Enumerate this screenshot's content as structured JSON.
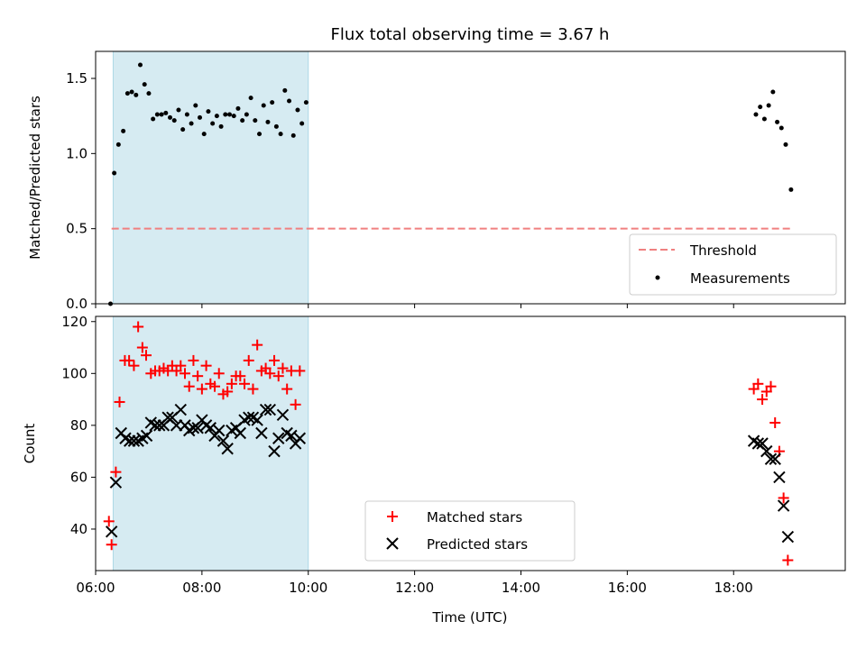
{
  "title": "Flux total observing time = 3.67 h",
  "colors": {
    "highlight": "#add8e6",
    "threshold": "#f08080",
    "measurement": "#000000",
    "matched": "#ff0000",
    "predicted": "#000000"
  },
  "chart_data": [
    {
      "type": "scatter",
      "panel": "top",
      "ylabel": "Matched/Predicted stars",
      "xlabel": "",
      "xlim": [
        6.0,
        20.1
      ],
      "ylim": [
        0,
        1.68
      ],
      "yticks": [
        0.0,
        0.5,
        1.0,
        1.5
      ],
      "ytick_labels": [
        "0.0",
        "0.5",
        "1.0",
        "1.5"
      ],
      "highlight_span": [
        6.33,
        10.0
      ],
      "threshold": {
        "value": 0.5,
        "x_range": [
          6.3,
          19.1
        ],
        "label": "Threshold"
      },
      "legend_position": "lower right",
      "series": [
        {
          "name": "Measurements",
          "points": [
            [
              6.28,
              0.0
            ],
            [
              6.35,
              0.87
            ],
            [
              6.43,
              1.06
            ],
            [
              6.52,
              1.15
            ],
            [
              6.6,
              1.4
            ],
            [
              6.68,
              1.41
            ],
            [
              6.76,
              1.39
            ],
            [
              6.84,
              1.59
            ],
            [
              6.92,
              1.46
            ],
            [
              7.0,
              1.4
            ],
            [
              7.08,
              1.23
            ],
            [
              7.16,
              1.26
            ],
            [
              7.24,
              1.26
            ],
            [
              7.32,
              1.27
            ],
            [
              7.4,
              1.24
            ],
            [
              7.48,
              1.22
            ],
            [
              7.56,
              1.29
            ],
            [
              7.64,
              1.16
            ],
            [
              7.72,
              1.26
            ],
            [
              7.8,
              1.2
            ],
            [
              7.88,
              1.32
            ],
            [
              7.96,
              1.24
            ],
            [
              8.04,
              1.13
            ],
            [
              8.12,
              1.28
            ],
            [
              8.2,
              1.2
            ],
            [
              8.28,
              1.25
            ],
            [
              8.36,
              1.18
            ],
            [
              8.44,
              1.26
            ],
            [
              8.52,
              1.26
            ],
            [
              8.6,
              1.25
            ],
            [
              8.68,
              1.3
            ],
            [
              8.76,
              1.22
            ],
            [
              8.84,
              1.26
            ],
            [
              8.92,
              1.37
            ],
            [
              9.0,
              1.22
            ],
            [
              9.08,
              1.13
            ],
            [
              9.16,
              1.32
            ],
            [
              9.24,
              1.21
            ],
            [
              9.32,
              1.34
            ],
            [
              9.4,
              1.18
            ],
            [
              9.48,
              1.13
            ],
            [
              9.56,
              1.42
            ],
            [
              9.64,
              1.35
            ],
            [
              9.72,
              1.12
            ],
            [
              9.8,
              1.29
            ],
            [
              9.88,
              1.2
            ],
            [
              9.96,
              1.34
            ],
            [
              18.42,
              1.26
            ],
            [
              18.5,
              1.31
            ],
            [
              18.58,
              1.23
            ],
            [
              18.66,
              1.32
            ],
            [
              18.74,
              1.41
            ],
            [
              18.82,
              1.21
            ],
            [
              18.9,
              1.17
            ],
            [
              18.98,
              1.06
            ],
            [
              19.08,
              0.76
            ]
          ]
        }
      ]
    },
    {
      "type": "scatter",
      "panel": "bottom",
      "ylabel": "Count",
      "xlabel": "Time (UTC)",
      "xlim": [
        6.0,
        20.1
      ],
      "ylim": [
        24,
        122
      ],
      "yticks": [
        40,
        60,
        80,
        100,
        120
      ],
      "ytick_labels": [
        "40",
        "60",
        "80",
        "100",
        "120"
      ],
      "xticks": [
        6,
        8,
        10,
        12,
        14,
        16,
        18
      ],
      "xtick_labels": [
        "06:00",
        "08:00",
        "10:00",
        "12:00",
        "14:00",
        "16:00",
        "18:00"
      ],
      "highlight_span": [
        6.33,
        10.0
      ],
      "legend_position": "lower center",
      "series": [
        {
          "name": "Matched stars",
          "marker": "+",
          "points": [
            [
              6.25,
              43
            ],
            [
              6.3,
              34
            ],
            [
              6.38,
              62
            ],
            [
              6.45,
              89
            ],
            [
              6.55,
              105
            ],
            [
              6.63,
              105
            ],
            [
              6.72,
              103
            ],
            [
              6.8,
              118
            ],
            [
              6.88,
              110
            ],
            [
              6.95,
              107
            ],
            [
              7.04,
              100
            ],
            [
              7.12,
              101
            ],
            [
              7.2,
              101
            ],
            [
              7.28,
              102
            ],
            [
              7.36,
              101
            ],
            [
              7.44,
              103
            ],
            [
              7.52,
              101
            ],
            [
              7.6,
              103
            ],
            [
              7.68,
              100
            ],
            [
              7.76,
              95
            ],
            [
              7.84,
              105
            ],
            [
              7.92,
              99
            ],
            [
              8.0,
              94
            ],
            [
              8.08,
              103
            ],
            [
              8.16,
              96
            ],
            [
              8.24,
              95
            ],
            [
              8.32,
              100
            ],
            [
              8.4,
              92
            ],
            [
              8.48,
              93
            ],
            [
              8.56,
              96
            ],
            [
              8.64,
              99
            ],
            [
              8.72,
              99
            ],
            [
              8.8,
              96
            ],
            [
              8.88,
              105
            ],
            [
              8.96,
              94
            ],
            [
              9.04,
              111
            ],
            [
              9.12,
              101
            ],
            [
              9.2,
              102
            ],
            [
              9.28,
              100
            ],
            [
              9.36,
              105
            ],
            [
              9.44,
              99
            ],
            [
              9.52,
              102
            ],
            [
              9.6,
              94
            ],
            [
              9.68,
              101
            ],
            [
              9.76,
              88
            ],
            [
              9.84,
              101
            ],
            [
              18.38,
              94
            ],
            [
              18.46,
              96
            ],
            [
              18.54,
              90
            ],
            [
              18.62,
              93
            ],
            [
              18.7,
              95
            ],
            [
              18.78,
              81
            ],
            [
              18.86,
              70
            ],
            [
              18.94,
              52
            ],
            [
              19.02,
              28
            ]
          ]
        },
        {
          "name": "Predicted stars",
          "marker": "x",
          "points": [
            [
              6.3,
              39
            ],
            [
              6.38,
              58
            ],
            [
              6.48,
              77
            ],
            [
              6.56,
              75
            ],
            [
              6.64,
              74
            ],
            [
              6.72,
              74
            ],
            [
              6.8,
              74
            ],
            [
              6.88,
              75
            ],
            [
              6.96,
              76
            ],
            [
              7.04,
              81
            ],
            [
              7.12,
              80
            ],
            [
              7.2,
              80
            ],
            [
              7.28,
              80
            ],
            [
              7.36,
              83
            ],
            [
              7.44,
              83
            ],
            [
              7.52,
              80
            ],
            [
              7.6,
              86
            ],
            [
              7.68,
              80
            ],
            [
              7.76,
              78
            ],
            [
              7.84,
              79
            ],
            [
              7.92,
              79
            ],
            [
              8.0,
              82
            ],
            [
              8.08,
              80
            ],
            [
              8.16,
              79
            ],
            [
              8.24,
              76
            ],
            [
              8.32,
              78
            ],
            [
              8.4,
              74
            ],
            [
              8.48,
              71
            ],
            [
              8.56,
              78
            ],
            [
              8.64,
              79
            ],
            [
              8.72,
              77
            ],
            [
              8.8,
              82
            ],
            [
              8.88,
              83
            ],
            [
              8.96,
              83
            ],
            [
              9.04,
              82
            ],
            [
              9.12,
              77
            ],
            [
              9.2,
              86
            ],
            [
              9.28,
              86
            ],
            [
              9.36,
              70
            ],
            [
              9.44,
              75
            ],
            [
              9.52,
              84
            ],
            [
              9.6,
              77
            ],
            [
              9.68,
              76
            ],
            [
              9.76,
              73
            ],
            [
              9.84,
              75
            ],
            [
              18.38,
              74
            ],
            [
              18.46,
              73
            ],
            [
              18.54,
              73
            ],
            [
              18.62,
              70
            ],
            [
              18.7,
              67
            ],
            [
              18.78,
              67
            ],
            [
              18.86,
              60
            ],
            [
              18.94,
              49
            ],
            [
              19.02,
              37
            ]
          ]
        }
      ]
    }
  ]
}
